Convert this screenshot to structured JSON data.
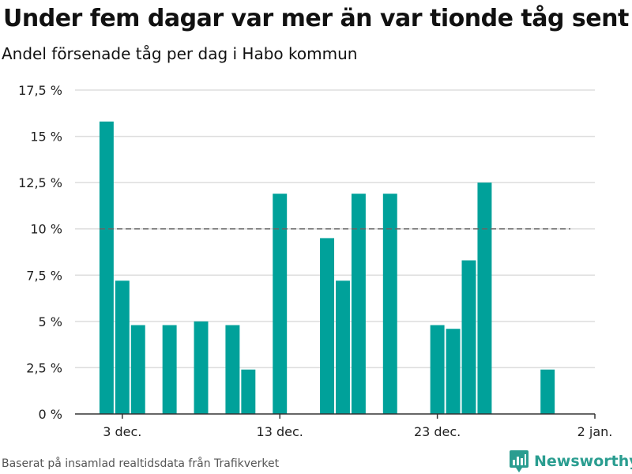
{
  "header": {
    "title": "Under fem dagar var mer än var tionde tåg sent",
    "subtitle": "Andel försenade tåg per dag i Habo kommun"
  },
  "footer": {
    "source": "Baserat på insamlad realtidsdata från Trafikverket",
    "brand": "Newsworthy"
  },
  "colors": {
    "bar": "#00a19a",
    "grid": "#dddddd",
    "reference_line": "#666666",
    "brand": "#2a9d90"
  },
  "chart_data": {
    "type": "bar",
    "title": "Under fem dagar var mer än var tionde tåg sent",
    "subtitle": "Andel försenade tåg per dag i Habo kommun",
    "xlabel": "",
    "ylabel": "",
    "ylim": [
      0,
      17.5
    ],
    "xlim": [
      "2023-11-30",
      "2024-01-02"
    ],
    "y_ticks": [
      0,
      2.5,
      5,
      7.5,
      10,
      12.5,
      15,
      17.5
    ],
    "y_tick_labels": [
      "0 %",
      "2,5 %",
      "5 %",
      "7,5 %",
      "10 %",
      "12,5 %",
      "15 %",
      "17,5 %"
    ],
    "x_ticks": [
      "2023-12-03",
      "2023-12-13",
      "2023-12-23",
      "2024-01-02"
    ],
    "x_tick_labels": [
      "3 dec.",
      "13 dec.",
      "23 dec.",
      "2 jan."
    ],
    "grid": true,
    "reference_line": 10,
    "series": [
      {
        "values": [
          {
            "date": "2023-12-02",
            "value": 15.8
          },
          {
            "date": "2023-12-03",
            "value": 7.2
          },
          {
            "date": "2023-12-04",
            "value": 4.8
          },
          {
            "date": "2023-12-06",
            "value": 4.8
          },
          {
            "date": "2023-12-08",
            "value": 5.0
          },
          {
            "date": "2023-12-10",
            "value": 4.8
          },
          {
            "date": "2023-12-11",
            "value": 2.4
          },
          {
            "date": "2023-12-13",
            "value": 11.9
          },
          {
            "date": "2023-12-16",
            "value": 9.5
          },
          {
            "date": "2023-12-17",
            "value": 7.2
          },
          {
            "date": "2023-12-18",
            "value": 11.9
          },
          {
            "date": "2023-12-20",
            "value": 11.9
          },
          {
            "date": "2023-12-23",
            "value": 4.8
          },
          {
            "date": "2023-12-24",
            "value": 4.6
          },
          {
            "date": "2023-12-25",
            "value": 8.3
          },
          {
            "date": "2023-12-26",
            "value": 12.5
          },
          {
            "date": "2023-12-30",
            "value": 2.4
          }
        ]
      }
    ]
  }
}
